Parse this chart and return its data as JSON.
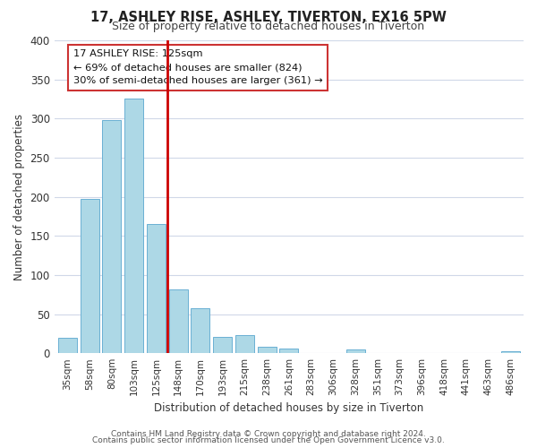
{
  "title": "17, ASHLEY RISE, ASHLEY, TIVERTON, EX16 5PW",
  "subtitle": "Size of property relative to detached houses in Tiverton",
  "xlabel": "Distribution of detached houses by size in Tiverton",
  "ylabel": "Number of detached properties",
  "bar_labels": [
    "35sqm",
    "58sqm",
    "80sqm",
    "103sqm",
    "125sqm",
    "148sqm",
    "170sqm",
    "193sqm",
    "215sqm",
    "238sqm",
    "261sqm",
    "283sqm",
    "306sqm",
    "328sqm",
    "351sqm",
    "373sqm",
    "396sqm",
    "418sqm",
    "441sqm",
    "463sqm",
    "486sqm"
  ],
  "bar_values": [
    20,
    197,
    298,
    325,
    165,
    82,
    57,
    21,
    23,
    8,
    6,
    0,
    0,
    5,
    0,
    0,
    0,
    0,
    0,
    0,
    3
  ],
  "bar_color": "#add8e6",
  "bar_edge_color": "#6ab0d4",
  "vline_color": "#cc0000",
  "vline_x": 4.5,
  "ylim": [
    0,
    400
  ],
  "yticks": [
    0,
    50,
    100,
    150,
    200,
    250,
    300,
    350,
    400
  ],
  "annotation_title": "17 ASHLEY RISE: 125sqm",
  "annotation_line1": "← 69% of detached houses are smaller (824)",
  "annotation_line2": "30% of semi-detached houses are larger (361) →",
  "footer1": "Contains HM Land Registry data © Crown copyright and database right 2024.",
  "footer2": "Contains public sector information licensed under the Open Government Licence v3.0.",
  "background_color": "#ffffff",
  "grid_color": "#d0d8e8"
}
